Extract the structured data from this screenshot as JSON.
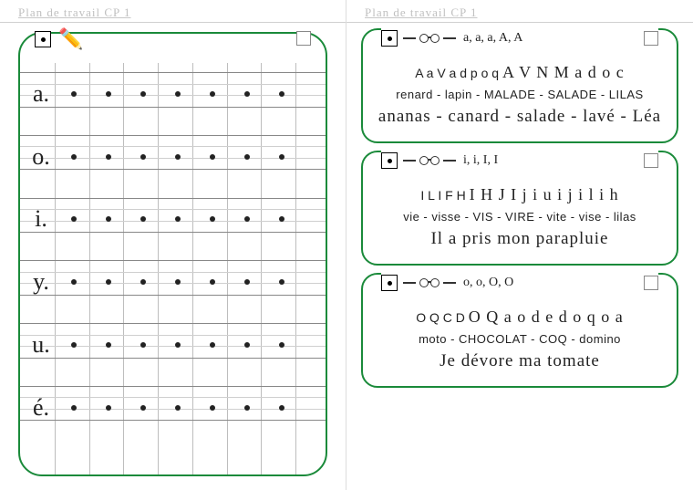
{
  "header": {
    "title": "Plan de travail CP 1"
  },
  "colors": {
    "border": "#1a8a3a",
    "grid": "#bdbdbd",
    "text": "#222222",
    "header_text": "#c0c0c0"
  },
  "left": {
    "grid": {
      "columns": 9,
      "row_groups": 6,
      "lines_per_group": 4
    },
    "letters": [
      "a.",
      "o.",
      "i.",
      "y.",
      "u.",
      "é."
    ],
    "dots_per_row": 7
  },
  "right": {
    "sections": [
      {
        "head": "a, a, a, A, A",
        "line1_print": "A a V a d p o q",
        "line1_cursive": "A V N M a d o c",
        "line2": "renard - lapin - MALADE - SALADE - LILAS",
        "line3_cursive": "ananas - canard - salade - lavé - Léa"
      },
      {
        "head": "i, i, I, I",
        "line1_print": "I L I F H",
        "line1_cursive": "I H J I j i u i j i l i h",
        "line2": "vie - visse - VIS - VIRE - vite - vise - lilas",
        "line3_cursive": "Il a pris mon parapluie"
      },
      {
        "head": "o, o, O, O",
        "line1_print": "O Q C D",
        "line1_cursive": "O Q a o d e d o q o a",
        "line2": "moto - CHOCOLAT - COQ - domino",
        "line3_cursive": "Je dévore ma tomate"
      }
    ]
  }
}
